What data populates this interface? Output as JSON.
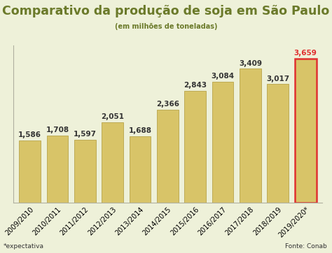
{
  "chart_data": {
    "type": "bar",
    "title": "Comparativo da produção de soja em São Paulo",
    "subtitle": "(em milhões de toneladas)",
    "categories": [
      "2009/2010",
      "2010/2011",
      "2011/2012",
      "2012/2013",
      "2013/2014",
      "2014/2015",
      "2015/2016",
      "2016/2017",
      "2017/2018",
      "2018/2019",
      "2019/2020*"
    ],
    "values": [
      1.586,
      1.708,
      1.597,
      2.051,
      1.688,
      2.366,
      2.843,
      3.084,
      3.409,
      3.017,
      3.659
    ],
    "value_labels": [
      "1,586",
      "1,708",
      "1,597",
      "2,051",
      "1,688",
      "2,366",
      "2,843",
      "3,084",
      "3,409",
      "3,017",
      "3,659"
    ],
    "color": "#d8c468",
    "ylim": [
      0,
      4.0
    ],
    "yticks": [],
    "tick_labels": "x",
    "data_labels": true,
    "grid": false,
    "annotations": [
      "*expectativa",
      "Fonte: Conab"
    ]
  }
}
